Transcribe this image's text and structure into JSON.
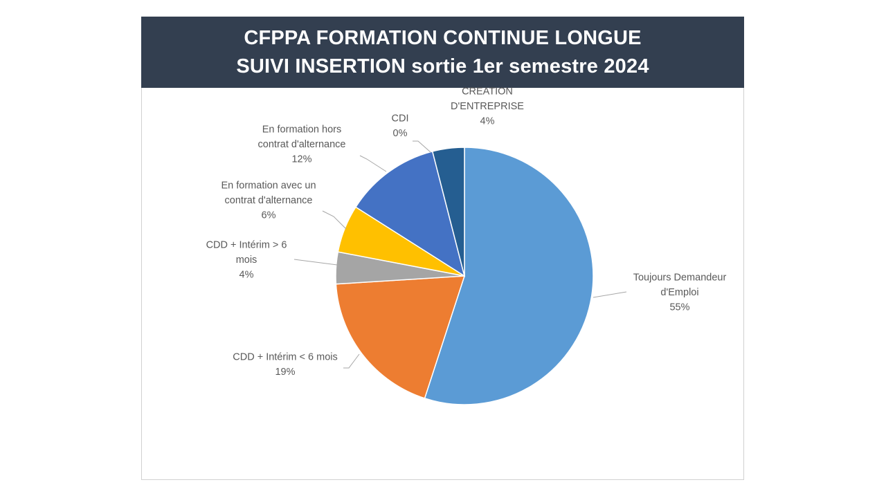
{
  "header": {
    "line1": "CFPPA FORMATION CONTINUE LONGUE",
    "line2": "SUIVI INSERTION sortie 1er semestre 2024"
  },
  "chart_data": {
    "type": "pie",
    "title": "CFPPA FORMATION CONTINUE LONGUE SUIVI INSERTION sortie 1er semestre 2024",
    "start_angle_deg": 0,
    "direction": "clockwise",
    "slices": [
      {
        "label": "Toujours Demandeur d'Emploi",
        "label_lines": [
          "Toujours Demandeur",
          "d'Emploi"
        ],
        "percent_text": "55%",
        "value": 55,
        "color": "#5b9bd5"
      },
      {
        "label": "CDD + Intérim < 6 mois",
        "label_lines": [
          "CDD + Intérim < 6 mois"
        ],
        "percent_text": "19%",
        "value": 19,
        "color": "#ed7d31"
      },
      {
        "label": "CDD + Intérim > 6 mois",
        "label_lines": [
          "CDD + Intérim > 6",
          "mois"
        ],
        "percent_text": "4%",
        "value": 4,
        "color": "#a5a5a5"
      },
      {
        "label": "En formation avec un contrat d'alternance",
        "label_lines": [
          "En formation avec un",
          "contrat d'alternance"
        ],
        "percent_text": "6%",
        "value": 6,
        "color": "#ffc000"
      },
      {
        "label": "En formation hors contrat d'alternance",
        "label_lines": [
          "En formation hors",
          "contrat d'alternance"
        ],
        "percent_text": "12%",
        "value": 12,
        "color": "#4472c4"
      },
      {
        "label": "CDI",
        "label_lines": [
          "CDI"
        ],
        "percent_text": "0%",
        "value": 0,
        "color": "#70ad47"
      },
      {
        "label": "CREATION D'ENTREPRISE",
        "label_lines": [
          "CREATION",
          "D'ENTREPRISE"
        ],
        "percent_text": "4%",
        "value": 4,
        "color": "#255e91"
      }
    ],
    "legend": "none",
    "data_labels": "outside-with-leader-lines"
  }
}
